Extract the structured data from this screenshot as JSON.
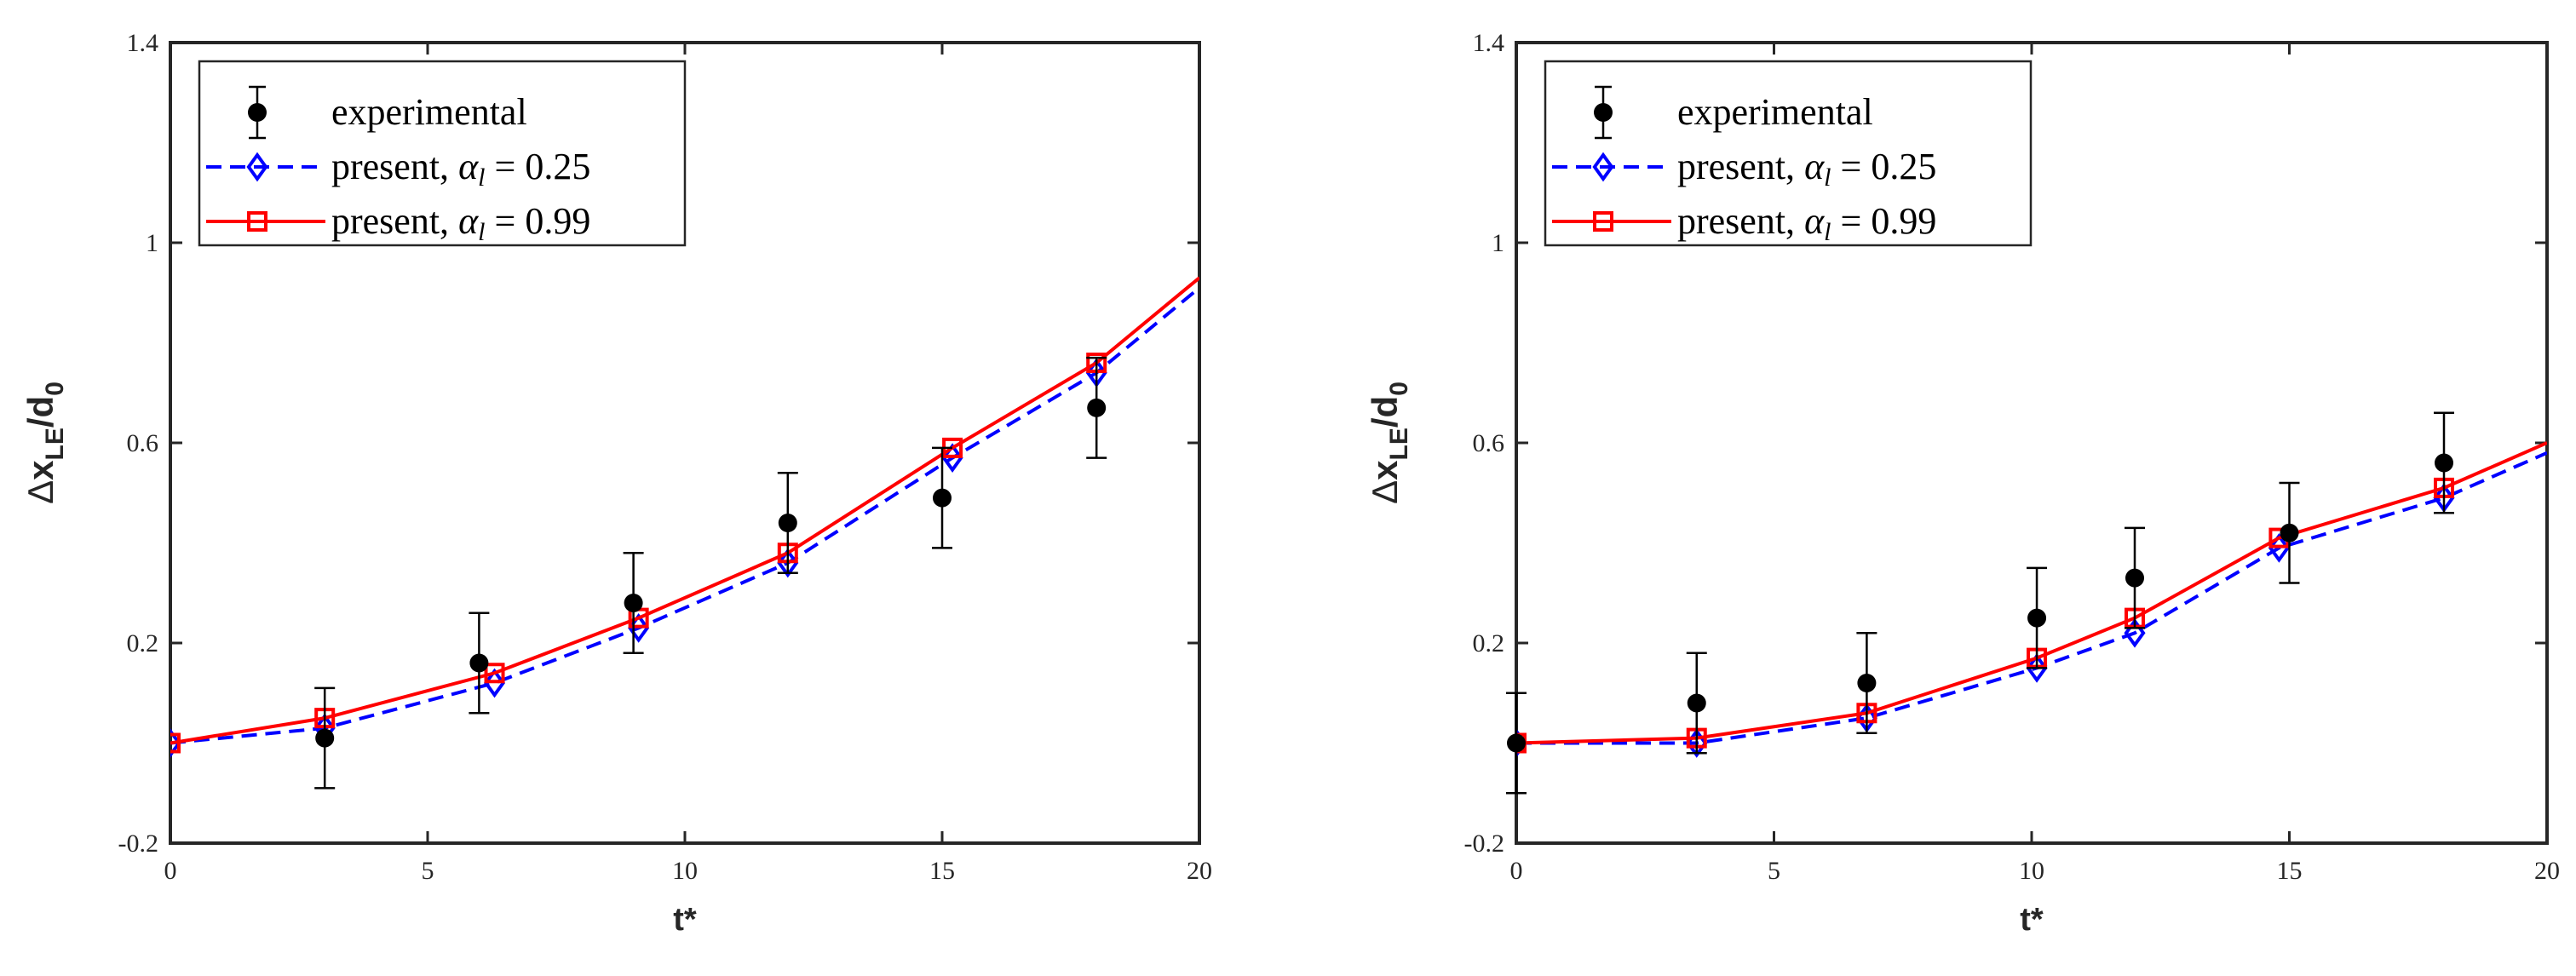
{
  "chart_data": [
    {
      "type": "line",
      "title": "",
      "xlabel": "t*",
      "ylabel": {
        "delta": "Δ",
        "x": "x",
        "sub": "LE",
        "slash": "/d",
        "sub2": "0"
      },
      "xlim": [
        0,
        20
      ],
      "ylim": [
        -0.2,
        1.4
      ],
      "xticks": [
        0,
        5,
        10,
        15,
        20
      ],
      "xtick_labels": [
        "0",
        "5",
        "10",
        "15",
        "20"
      ],
      "yticks": [
        -0.2,
        0.2,
        0.6,
        1.0,
        1.4
      ],
      "ytick_labels": [
        "-0.2",
        "0.2",
        "0.6",
        "1",
        "1.4"
      ],
      "legend_position": "top-left",
      "legend": {
        "experimental": "experimental",
        "alpha025": {
          "prefix": "present, ",
          "var": "α",
          "sub": "l",
          "eq": " = 0.25"
        },
        "alpha099": {
          "prefix": "present, ",
          "var": "α",
          "sub": "l",
          "eq": " = 0.99"
        }
      },
      "experimental": {
        "x": [
          3.0,
          6.0,
          9.0,
          12.0,
          15.0,
          18.0
        ],
        "y": [
          0.01,
          0.16,
          0.28,
          0.44,
          0.49,
          0.67
        ],
        "err": [
          0.1,
          0.1,
          0.1,
          0.1,
          0.1,
          0.1
        ]
      },
      "series": [
        {
          "name": "present, αl = 0.25",
          "color": "#0000ff",
          "style": "dashed",
          "marker": "diamond",
          "x": [
            0,
            3.0,
            6.3,
            9.1,
            12.0,
            15.2,
            18.0,
            20.0
          ],
          "y": [
            0.0,
            0.03,
            0.12,
            0.23,
            0.36,
            0.57,
            0.74,
            0.91
          ]
        },
        {
          "name": "present, αl = 0.99",
          "color": "#ff0000",
          "style": "solid",
          "marker": "square",
          "x": [
            0,
            3.0,
            6.3,
            9.1,
            12.0,
            15.2,
            18.0,
            20.0
          ],
          "y": [
            0.0,
            0.05,
            0.14,
            0.25,
            0.38,
            0.59,
            0.76,
            0.93
          ]
        }
      ]
    },
    {
      "type": "line",
      "title": "",
      "xlabel": "t*",
      "ylabel": {
        "delta": "Δ",
        "x": "x",
        "sub": "LE",
        "slash": "/d",
        "sub2": "0"
      },
      "xlim": [
        0,
        20
      ],
      "ylim": [
        -0.2,
        1.4
      ],
      "xticks": [
        0,
        5,
        10,
        15,
        20
      ],
      "xtick_labels": [
        "0",
        "5",
        "10",
        "15",
        "20"
      ],
      "yticks": [
        -0.2,
        0.2,
        0.6,
        1.0,
        1.4
      ],
      "ytick_labels": [
        "-0.2",
        "0.2",
        "0.6",
        "1",
        "1.4"
      ],
      "legend_position": "top-left",
      "legend": {
        "experimental": "experimental",
        "alpha025": {
          "prefix": "present, ",
          "var": "α",
          "sub": "l",
          "eq": " = 0.25"
        },
        "alpha099": {
          "prefix": "present, ",
          "var": "α",
          "sub": "l",
          "eq": " = 0.99"
        }
      },
      "experimental": {
        "x": [
          0.0,
          3.5,
          6.8,
          10.1,
          12.0,
          15.0,
          18.0
        ],
        "y": [
          0.0,
          0.08,
          0.12,
          0.25,
          0.33,
          0.42,
          0.56
        ],
        "err": [
          0.1,
          0.1,
          0.1,
          0.1,
          0.1,
          0.1,
          0.1
        ]
      },
      "series": [
        {
          "name": "present, αl = 0.25",
          "color": "#0000ff",
          "style": "dashed",
          "marker": "diamond",
          "x": [
            0,
            3.5,
            6.8,
            10.1,
            12.0,
            14.8,
            18.0,
            20.0
          ],
          "y": [
            0.0,
            0.0,
            0.05,
            0.15,
            0.22,
            0.39,
            0.49,
            0.58
          ]
        },
        {
          "name": "present, αl = 0.99",
          "color": "#ff0000",
          "style": "solid",
          "marker": "square",
          "x": [
            0,
            3.5,
            6.8,
            10.1,
            12.0,
            14.8,
            18.0,
            20.0
          ],
          "y": [
            0.0,
            0.01,
            0.06,
            0.17,
            0.25,
            0.41,
            0.51,
            0.6
          ]
        }
      ]
    }
  ]
}
